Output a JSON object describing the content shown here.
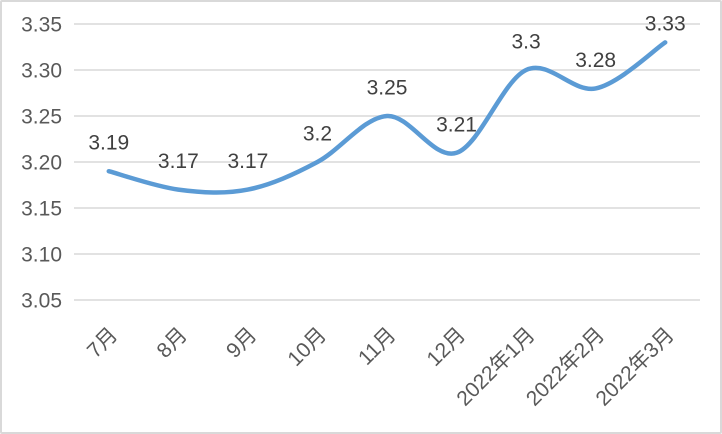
{
  "window": {
    "background_color": "#ffffff",
    "border_color": "#d9d9d9"
  },
  "chart_data": {
    "type": "line",
    "title": "",
    "xlabel": "",
    "ylabel": "",
    "categories": [
      "7月",
      "8月",
      "9月",
      "10月",
      "11月",
      "12月",
      "2022年1月",
      "2022年2月",
      "2022年3月"
    ],
    "values": [
      3.19,
      3.17,
      3.17,
      3.2,
      3.25,
      3.21,
      3.3,
      3.28,
      3.33
    ],
    "data_labels": [
      "3.19",
      "3.17",
      "3.17",
      "3.2",
      "3.25",
      "3.21",
      "3.3",
      "3.28",
      "3.33"
    ],
    "y_ticks": [
      "3.05",
      "3.10",
      "3.15",
      "3.20",
      "3.25",
      "3.30",
      "3.35"
    ],
    "ylim": [
      3.05,
      3.35
    ],
    "grid": true,
    "legend_position": "none",
    "smooth_line": true,
    "line_color": "#5b9bd5",
    "gridline_color": "#d9d9d9",
    "data_label_color": "#404040",
    "axis_label_color": "#595959"
  }
}
